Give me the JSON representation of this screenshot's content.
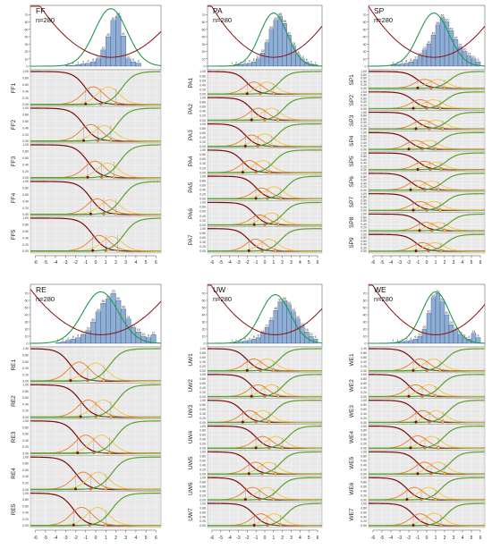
{
  "chart_data": [
    {
      "type": "bar",
      "title": "FF",
      "n_label": "n=280",
      "x_ticks": [
        -6,
        -5,
        -4,
        -3,
        -2,
        -1,
        0,
        1,
        2,
        3,
        4,
        5,
        6
      ],
      "hist_y_ticks": [
        0,
        10,
        20,
        30,
        40,
        50,
        60,
        70
      ],
      "item_y_ticks": [
        "0.00",
        "0.20",
        "0.40",
        "0.60",
        "0.80",
        "1.00"
      ],
      "histogram": {
        "bins": [
          -3,
          -2.5,
          -2,
          -1.5,
          -1,
          -0.5,
          0,
          0.5,
          1,
          1.5,
          2,
          2.5,
          3,
          3.5,
          4,
          4.5,
          5,
          5.5
        ],
        "counts": [
          1,
          1,
          2,
          3,
          4,
          6,
          10,
          22,
          40,
          62,
          68,
          41,
          10,
          6,
          4,
          0,
          0,
          0
        ],
        "bin_width": 0.5
      },
      "info_curve": {
        "peak_x": 1.5,
        "peak": 78,
        "width": 2.3
      },
      "se_curve": {
        "min_x": 1.5,
        "min": 12,
        "curv": 1.4
      },
      "items": [
        {
          "label": "FF1",
          "b": [
            -1.0,
            0.5,
            2.0,
            3.5
          ]
        },
        {
          "label": "FF2",
          "b": [
            -1.2,
            0.2,
            1.5,
            3.0
          ]
        },
        {
          "label": "FF3",
          "b": [
            -0.8,
            0.6,
            1.8,
            3.3
          ]
        },
        {
          "label": "FF4",
          "b": [
            -0.5,
            0.8,
            2.0,
            3.5
          ]
        },
        {
          "label": "FF5",
          "b": [
            -0.3,
            1.0,
            2.2,
            3.8
          ]
        }
      ]
    },
    {
      "type": "bar",
      "title": "PA",
      "n_label": "n=280",
      "x_ticks": [
        -6,
        -5,
        -4,
        -3,
        -2,
        -1,
        0,
        1,
        2,
        3,
        4,
        5,
        6
      ],
      "hist_y_ticks": [
        0,
        10,
        20,
        30,
        40,
        50,
        60,
        70
      ],
      "item_y_ticks": [
        "0.00",
        "0.20",
        "0.40",
        "0.60",
        "0.80",
        "1.00"
      ],
      "histogram": {
        "bins": [
          -4,
          -3.5,
          -3,
          -2.5,
          -2,
          -1.5,
          -1,
          -0.5,
          0,
          0.5,
          1,
          1.5,
          2,
          2.5,
          3,
          3.5,
          4,
          4.5,
          5,
          5.5
        ],
        "counts": [
          1,
          2,
          2,
          3,
          4,
          6,
          10,
          18,
          32,
          50,
          62,
          68,
          58,
          42,
          28,
          16,
          10,
          6,
          3,
          2
        ],
        "bin_width": 0.5
      },
      "info_curve": {
        "peak_x": 1.0,
        "peak": 72,
        "width": 2.2
      },
      "se_curve": {
        "min_x": 1.0,
        "min": 12,
        "curv": 1.4
      },
      "items": [
        {
          "label": "PA1",
          "b": [
            -2.0,
            -0.5,
            1.0,
            2.5
          ]
        },
        {
          "label": "PA2",
          "b": [
            -1.5,
            0.0,
            1.5,
            3.0
          ]
        },
        {
          "label": "PA3",
          "b": [
            -2.2,
            -0.8,
            0.8,
            2.4
          ]
        },
        {
          "label": "PA4",
          "b": [
            -2.5,
            -1.0,
            0.5,
            2.0
          ]
        },
        {
          "label": "PA5",
          "b": [
            -1.0,
            0.3,
            1.8,
            3.2
          ]
        },
        {
          "label": "PA6",
          "b": [
            -1.2,
            0.0,
            1.5,
            3.0
          ]
        },
        {
          "label": "PA7",
          "b": [
            -1.8,
            -0.3,
            1.2,
            2.8
          ]
        }
      ]
    },
    {
      "type": "bar",
      "title": "SP",
      "n_label": "n=280",
      "x_ticks": [
        -6,
        -5,
        -4,
        -3,
        -2,
        -1,
        0,
        1,
        2,
        3,
        4,
        5,
        6
      ],
      "hist_y_ticks": [
        0,
        10,
        20,
        30,
        40,
        50,
        60,
        70
      ],
      "item_y_ticks": [
        "0.00",
        "0.20",
        "0.40",
        "0.60",
        "0.80",
        "1.00"
      ],
      "histogram": {
        "bins": [
          -4,
          -3.5,
          -3,
          -2.5,
          -2,
          -1.5,
          -1,
          -0.5,
          0,
          0.5,
          1,
          1.5,
          2,
          2.5,
          3,
          3.5,
          4,
          4.5,
          5,
          5.5
        ],
        "counts": [
          2,
          2,
          3,
          4,
          6,
          9,
          14,
          22,
          30,
          42,
          56,
          66,
          60,
          48,
          36,
          26,
          20,
          14,
          10,
          6
        ],
        "bin_width": 0.5
      },
      "info_curve": {
        "peak_x": 0.8,
        "peak": 72,
        "width": 2.4
      },
      "se_curve": {
        "min_x": 0.8,
        "min": 12,
        "curv": 1.3
      },
      "items": [
        {
          "label": "SP1",
          "b": [
            -1.0,
            0.5,
            2.0,
            3.5
          ]
        },
        {
          "label": "SP2",
          "b": [
            -1.5,
            0.0,
            1.5,
            3.0
          ]
        },
        {
          "label": "SP3",
          "b": [
            -1.2,
            0.3,
            1.8,
            3.3
          ]
        },
        {
          "label": "SP4",
          "b": [
            -2.0,
            -0.5,
            1.0,
            2.5
          ]
        },
        {
          "label": "SP5",
          "b": [
            -1.0,
            0.4,
            1.6,
            3.0
          ]
        },
        {
          "label": "SP6",
          "b": [
            -1.8,
            -0.2,
            1.3,
            2.8
          ]
        },
        {
          "label": "SP7",
          "b": [
            -1.5,
            0.0,
            1.5,
            3.0
          ]
        },
        {
          "label": "SP8",
          "b": [
            -0.8,
            0.6,
            2.0,
            3.5
          ]
        },
        {
          "label": "SP9",
          "b": [
            -1.2,
            0.2,
            1.6,
            3.1
          ]
        }
      ]
    },
    {
      "type": "bar",
      "title": "RE",
      "n_label": "n=280",
      "x_ticks": [
        -6,
        -5,
        -4,
        -3,
        -2,
        -1,
        0,
        1,
        2,
        3,
        4,
        5,
        6
      ],
      "hist_y_ticks": [
        0,
        10,
        20,
        30,
        40,
        50,
        60,
        70
      ],
      "item_y_ticks": [
        "0.00",
        "0.20",
        "0.40",
        "0.60",
        "0.80",
        "1.00"
      ],
      "histogram": {
        "bins": [
          -4,
          -3.5,
          -3,
          -2.5,
          -2,
          -1.5,
          -1,
          -0.5,
          0,
          0.5,
          1,
          1.5,
          2,
          2.5,
          3,
          3.5,
          4,
          4.5,
          5,
          5.5
        ],
        "counts": [
          1,
          2,
          4,
          6,
          8,
          12,
          18,
          30,
          44,
          56,
          62,
          70,
          60,
          48,
          34,
          22,
          16,
          10,
          8,
          12
        ],
        "bin_width": 0.5
      },
      "info_curve": {
        "peak_x": 0.5,
        "peak": 72,
        "width": 2.5
      },
      "se_curve": {
        "min_x": 0.5,
        "min": 12,
        "curv": 1.3
      },
      "items": [
        {
          "label": "RE1",
          "b": [
            -2.5,
            -0.8,
            0.8,
            2.5
          ]
        },
        {
          "label": "RE2",
          "b": [
            -1.5,
            0.0,
            1.5,
            3.0
          ]
        },
        {
          "label": "RE3",
          "b": [
            -1.8,
            -0.2,
            1.4,
            3.0
          ]
        },
        {
          "label": "RE4",
          "b": [
            -2.0,
            -0.5,
            1.0,
            2.6
          ]
        },
        {
          "label": "RE5",
          "b": [
            -2.2,
            -0.6,
            1.0,
            2.8
          ]
        }
      ]
    },
    {
      "type": "bar",
      "title": "UW",
      "n_label": "n=280",
      "x_ticks": [
        -6,
        -5,
        -4,
        -3,
        -2,
        -1,
        0,
        1,
        2,
        3,
        4,
        5,
        6
      ],
      "hist_y_ticks": [
        0,
        10,
        20,
        30,
        40,
        50,
        60,
        70
      ],
      "item_y_ticks": [
        "0.00",
        "0.20",
        "0.40",
        "0.60",
        "0.80",
        "1.00"
      ],
      "histogram": {
        "bins": [
          -4,
          -3.5,
          -3,
          -2.5,
          -2,
          -1.5,
          -1,
          -0.5,
          0,
          0.5,
          1,
          1.5,
          2,
          2.5,
          3,
          3.5,
          4,
          4.5,
          5,
          5.5
        ],
        "counts": [
          1,
          1,
          2,
          3,
          4,
          6,
          8,
          14,
          22,
          32,
          46,
          58,
          60,
          54,
          44,
          34,
          24,
          16,
          10,
          6
        ],
        "bin_width": 0.5
      },
      "info_curve": {
        "peak_x": 1.2,
        "peak": 68,
        "width": 2.4
      },
      "se_curve": {
        "min_x": 1.2,
        "min": 12,
        "curv": 1.3
      },
      "items": [
        {
          "label": "UW1",
          "b": [
            -2.0,
            -0.5,
            1.0,
            2.5
          ]
        },
        {
          "label": "UW2",
          "b": [
            -1.5,
            0.0,
            1.5,
            3.0
          ]
        },
        {
          "label": "UW3",
          "b": [
            -2.5,
            -1.0,
            0.5,
            2.0
          ]
        },
        {
          "label": "UW4",
          "b": [
            -1.0,
            0.5,
            2.0,
            3.5
          ]
        },
        {
          "label": "UW5",
          "b": [
            -1.8,
            -0.3,
            1.2,
            2.8
          ]
        },
        {
          "label": "UW6",
          "b": [
            -2.2,
            -0.6,
            1.0,
            2.6
          ]
        },
        {
          "label": "UW7",
          "b": [
            -1.2,
            0.3,
            1.8,
            3.3
          ]
        }
      ]
    },
    {
      "type": "bar",
      "title": "WE",
      "n_label": "n=280",
      "x_ticks": [
        -6,
        -5,
        -4,
        -3,
        -2,
        -1,
        0,
        1,
        2,
        3,
        4,
        5,
        6
      ],
      "hist_y_ticks": [
        0,
        10,
        20,
        30,
        40,
        50,
        60,
        70
      ],
      "item_y_ticks": [
        "0.00",
        "0.20",
        "0.40",
        "0.60",
        "0.80",
        "1.00"
      ],
      "histogram": {
        "bins": [
          -4,
          -3.5,
          -3,
          -2.5,
          -2,
          -1.5,
          -1,
          -0.5,
          0,
          0.5,
          1,
          1.5,
          2,
          2.5,
          3,
          3.5,
          4,
          4.5,
          5,
          5.5
        ],
        "counts": [
          1,
          1,
          2,
          3,
          4,
          6,
          10,
          20,
          42,
          64,
          70,
          58,
          40,
          26,
          18,
          12,
          8,
          6,
          14,
          8
        ],
        "bin_width": 0.5
      },
      "info_curve": {
        "peak_x": 1.0,
        "peak": 72,
        "width": 2.2
      },
      "se_curve": {
        "min_x": 1.0,
        "min": 12,
        "curv": 1.4
      },
      "items": [
        {
          "label": "WE1",
          "b": [
            -1.5,
            0.0,
            1.5,
            3.0
          ]
        },
        {
          "label": "WE2",
          "b": [
            -2.0,
            -0.5,
            1.0,
            2.5
          ]
        },
        {
          "label": "WE3",
          "b": [
            -1.2,
            0.3,
            1.8,
            3.3
          ]
        },
        {
          "label": "WE4",
          "b": [
            -1.8,
            -0.2,
            1.3,
            2.8
          ]
        },
        {
          "label": "WE5",
          "b": [
            -1.0,
            0.5,
            2.0,
            3.5
          ]
        },
        {
          "label": "WE6",
          "b": [
            -2.2,
            -0.6,
            1.0,
            2.6
          ]
        },
        {
          "label": "WE7",
          "b": [
            -1.5,
            0.0,
            1.6,
            3.2
          ]
        }
      ]
    }
  ],
  "colors": {
    "bar_fill": "#8eaed6",
    "bar_stroke": "#34486a",
    "information": "#1e9a4e",
    "se": "#8b1010",
    "cat1": "#7a0a0a",
    "cat2": "#f07a22",
    "cat3": "#f6c33c",
    "cat4": "#5aa02c",
    "panel_bg": "#e8e8e8",
    "threshold_line": "#5aa02c"
  }
}
